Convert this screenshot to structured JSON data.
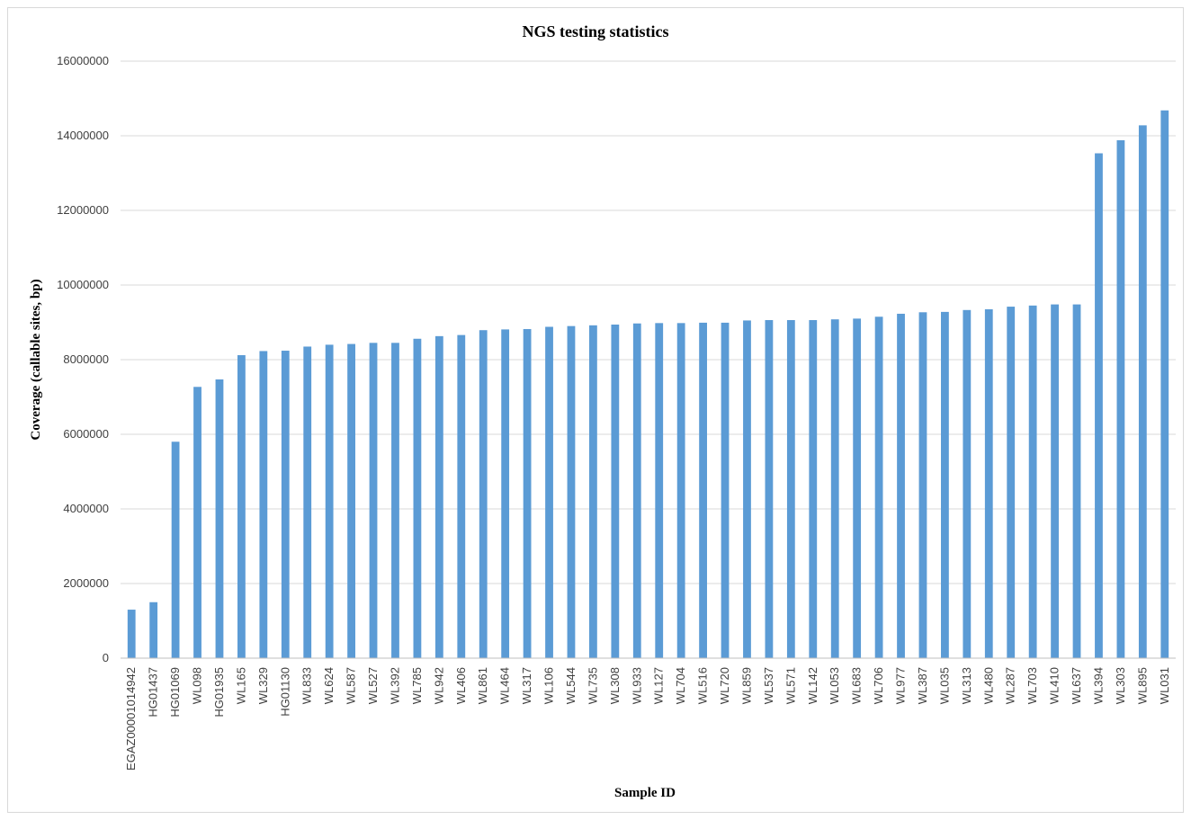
{
  "chart_data": {
    "type": "bar",
    "title": "NGS testing statistics",
    "xlabel": "Sample ID",
    "ylabel": "Coverage (callable sites, bp)",
    "ylim": [
      0,
      16000000
    ],
    "yticks": [
      0,
      2000000,
      4000000,
      6000000,
      8000000,
      10000000,
      12000000,
      14000000,
      16000000
    ],
    "grid": true,
    "legend": "none",
    "bar_color": "#5b9bd5",
    "categories": [
      "EGAZ00001014942",
      "HG01437",
      "HG01069",
      "WL098",
      "HG01935",
      "WL165",
      "WL329",
      "HG01130",
      "WL833",
      "WL624",
      "WL587",
      "WL527",
      "WL392",
      "WL785",
      "WL942",
      "WL406",
      "WL861",
      "WL464",
      "WL317",
      "WL106",
      "WL544",
      "WL735",
      "WL308",
      "WL933",
      "WL127",
      "WL704",
      "WL516",
      "WL720",
      "WL859",
      "WL537",
      "WL571",
      "WL142",
      "WL053",
      "WL683",
      "WL706",
      "WL977",
      "WL387",
      "WL035",
      "WL313",
      "WL480",
      "WL287",
      "WL703",
      "WL410",
      "WL637",
      "WL394",
      "WL303",
      "WL895",
      "WL031"
    ],
    "values": [
      1300000,
      1500000,
      5800000,
      7270000,
      7470000,
      8120000,
      8230000,
      8240000,
      8350000,
      8400000,
      8420000,
      8450000,
      8450000,
      8560000,
      8630000,
      8660000,
      8790000,
      8810000,
      8820000,
      8880000,
      8900000,
      8920000,
      8940000,
      8970000,
      8980000,
      8980000,
      8990000,
      8990000,
      9050000,
      9060000,
      9060000,
      9060000,
      9080000,
      9100000,
      9150000,
      9230000,
      9270000,
      9280000,
      9330000,
      9350000,
      9420000,
      9450000,
      9480000,
      9480000,
      13530000,
      13880000,
      14280000,
      14680000
    ]
  }
}
